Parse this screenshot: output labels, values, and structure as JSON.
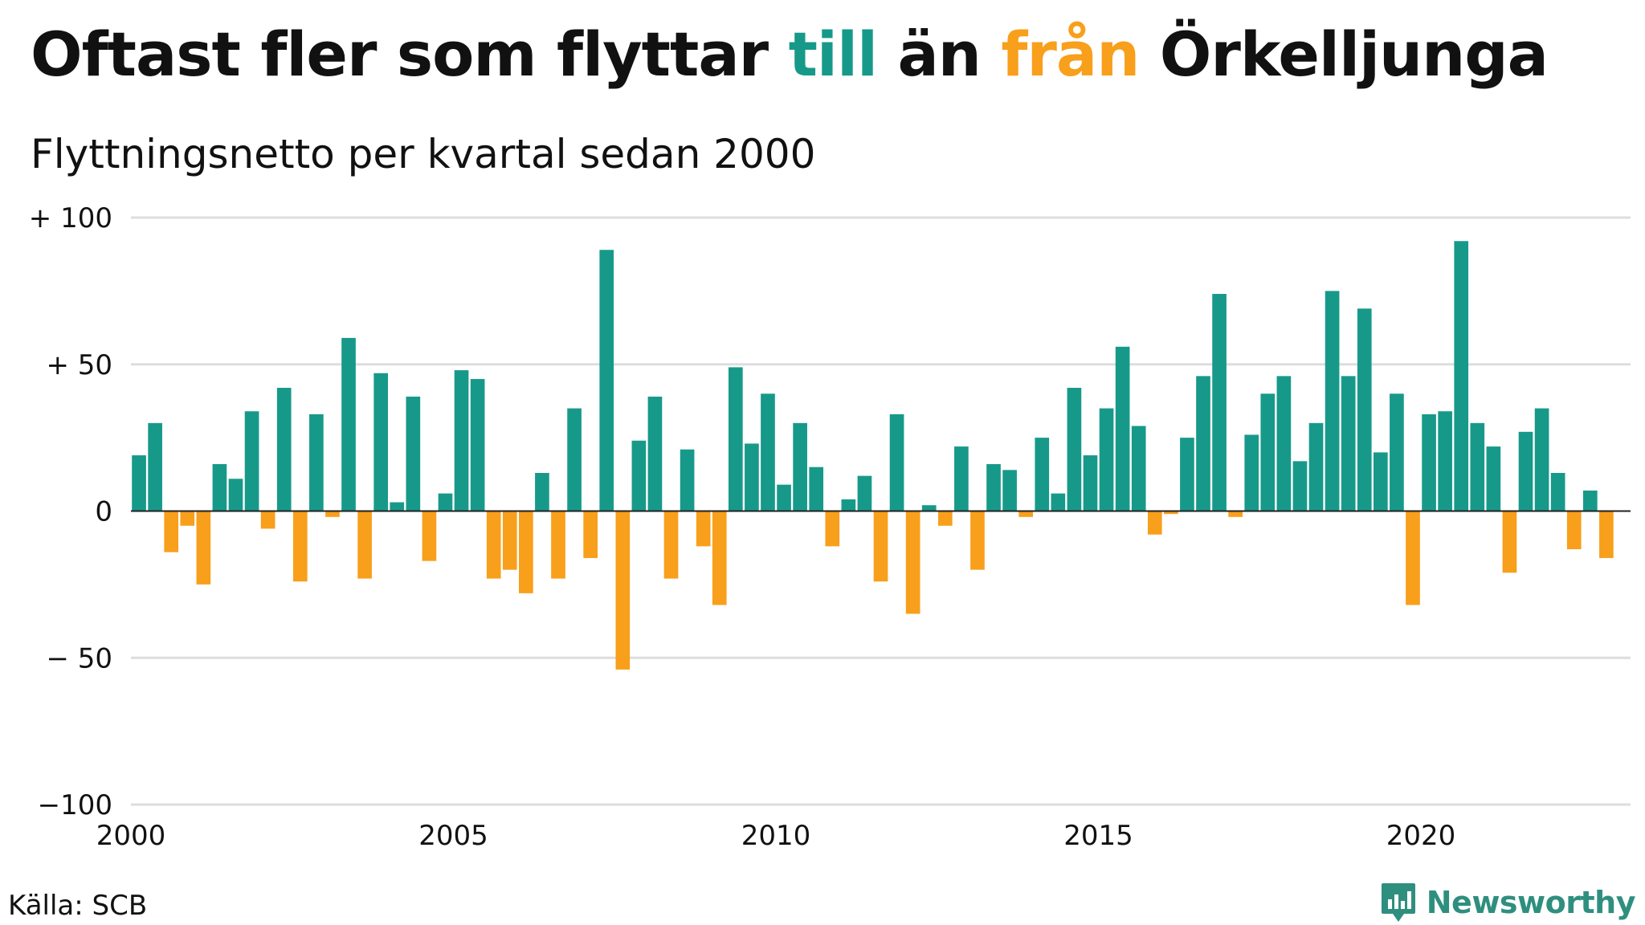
{
  "title": {
    "part1": "Oftast fler som flyttar ",
    "till": "till",
    "part2": " än ",
    "fran": "från",
    "part3": " Örkelljunga"
  },
  "subtitle": "Flyttningsnetto per kvartal sedan 2000",
  "source": "Källa: SCB",
  "brand": {
    "name": "Newsworthy",
    "icon": "newsworthy-logo-icon"
  },
  "colors": {
    "positive": "#17998a",
    "negative": "#f89f1b",
    "grid": "#dddddd",
    "zero_line": "#222222",
    "text": "#111111"
  },
  "chart_data": {
    "type": "bar",
    "title": "Oftast fler som flyttar till än från Örkelljunga",
    "subtitle": "Flyttningsnetto per kvartal sedan 2000",
    "xlabel": "",
    "ylabel": "",
    "x_start": 2000,
    "periods_per_year": 4,
    "xlim": [
      2000,
      2023.25
    ],
    "ylim": [
      -100,
      100
    ],
    "y_ticks": [
      100,
      50,
      0,
      -50,
      -100
    ],
    "y_tick_labels": [
      "+ 100",
      "+  50",
      "0",
      "− 50",
      "−100"
    ],
    "x_ticks": [
      2000,
      2005,
      2010,
      2015,
      2020
    ],
    "x_tick_labels": [
      "2000",
      "2005",
      "2010",
      "2015",
      "2020"
    ],
    "grid": true,
    "legend": "none",
    "values": [
      19,
      30,
      -14,
      -5,
      -25,
      16,
      11,
      34,
      -6,
      42,
      -24,
      33,
      -2,
      59,
      -23,
      47,
      3,
      39,
      -17,
      6,
      48,
      45,
      -23,
      -20,
      -28,
      13,
      -23,
      35,
      -16,
      89,
      -54,
      24,
      39,
      -23,
      21,
      -12,
      -32,
      49,
      23,
      40,
      9,
      30,
      15,
      -12,
      4,
      12,
      -24,
      33,
      -35,
      2,
      -5,
      22,
      -20,
      16,
      14,
      -2,
      25,
      6,
      42,
      19,
      35,
      56,
      29,
      -8,
      -1,
      25,
      46,
      74,
      -2,
      26,
      40,
      46,
      17,
      30,
      75,
      46,
      69,
      20,
      40,
      -32,
      33,
      34,
      92,
      30,
      22,
      -21,
      27,
      35,
      13,
      -13,
      7,
      -16
    ]
  }
}
